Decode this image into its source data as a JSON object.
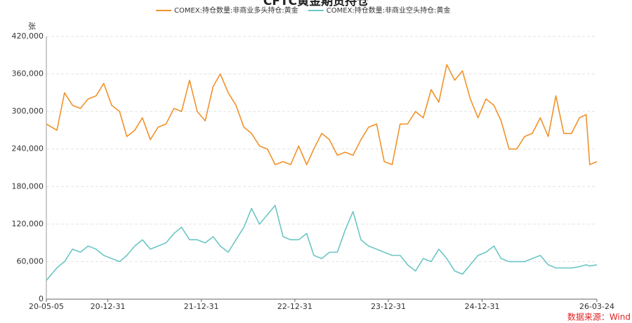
{
  "chart_data": {
    "type": "line",
    "title": "CFTC黄金期货持仓",
    "y_unit": "张",
    "source": "数据来源：Wind",
    "x": [
      "20-05-05",
      "20-06-15",
      "20-07-15",
      "20-08-15",
      "20-09-15",
      "20-10-15",
      "20-11-15",
      "20-12-15",
      "21-01-15",
      "21-02-15",
      "21-03-15",
      "21-04-15",
      "21-05-15",
      "21-06-15",
      "21-07-15",
      "21-08-15",
      "21-09-15",
      "21-10-15",
      "21-11-15",
      "21-12-15",
      "22-01-15",
      "22-02-15",
      "22-03-15",
      "22-04-15",
      "22-05-15",
      "22-06-15",
      "22-07-15",
      "22-08-15",
      "22-09-15",
      "22-10-15",
      "22-11-15",
      "22-12-15",
      "23-01-15",
      "23-02-15",
      "23-03-15",
      "23-04-15",
      "23-05-15",
      "23-06-15",
      "23-07-15",
      "23-08-15",
      "23-09-15",
      "23-10-15",
      "23-11-15",
      "23-12-15",
      "24-01-15",
      "24-02-15",
      "24-03-15",
      "24-04-15",
      "24-05-15",
      "24-06-15",
      "24-07-15",
      "24-08-15",
      "24-09-15",
      "24-10-15",
      "24-11-15",
      "24-12-15",
      "25-01-15",
      "25-02-15",
      "25-03-15",
      "25-04-15",
      "25-05-15",
      "25-06-15",
      "25-07-15",
      "25-08-15",
      "25-09-15",
      "25-10-15",
      "25-11-15",
      "25-12-15",
      "26-01-15",
      "26-02-10",
      "26-02-24",
      "26-03-24"
    ],
    "series": [
      {
        "name": "COMEX:持仓数量:非商业多头持仓:黄金",
        "color": "#f0922a",
        "values": [
          280000,
          270000,
          330000,
          310000,
          305000,
          320000,
          325000,
          345000,
          310000,
          300000,
          260000,
          270000,
          290000,
          255000,
          275000,
          280000,
          305000,
          300000,
          350000,
          300000,
          285000,
          340000,
          360000,
          330000,
          310000,
          275000,
          265000,
          245000,
          240000,
          215000,
          220000,
          215000,
          245000,
          215000,
          240000,
          265000,
          255000,
          230000,
          235000,
          230000,
          255000,
          275000,
          280000,
          220000,
          215000,
          280000,
          280000,
          300000,
          290000,
          335000,
          315000,
          375000,
          350000,
          365000,
          320000,
          290000,
          320000,
          310000,
          285000,
          240000,
          240000,
          260000,
          265000,
          290000,
          260000,
          325000,
          265000,
          265000,
          290000,
          295000,
          215000,
          220000
        ]
      },
      {
        "name": "COMEX:持仓数量:非商业空头持仓:黄金",
        "color": "#6cc6c6",
        "values": [
          30000,
          50000,
          60000,
          80000,
          75000,
          85000,
          80000,
          70000,
          65000,
          60000,
          70000,
          85000,
          95000,
          80000,
          85000,
          90000,
          105000,
          115000,
          95000,
          95000,
          90000,
          100000,
          85000,
          75000,
          95000,
          115000,
          145000,
          120000,
          135000,
          150000,
          100000,
          95000,
          95000,
          105000,
          70000,
          65000,
          75000,
          75000,
          110000,
          140000,
          95000,
          85000,
          80000,
          75000,
          70000,
          70000,
          55000,
          45000,
          65000,
          60000,
          80000,
          65000,
          45000,
          40000,
          55000,
          70000,
          75000,
          85000,
          65000,
          60000,
          60000,
          60000,
          65000,
          70000,
          55000,
          50000,
          50000,
          50000,
          52000,
          55000,
          53000,
          55000
        ]
      }
    ],
    "xlim": [
      "20-05-05",
      "26-03-24"
    ],
    "xticks": [
      "20-05-05",
      "20-12-31",
      "21-12-31",
      "22-12-31",
      "23-12-31",
      "24-12-31",
      "26-03-24"
    ],
    "ylim": [
      0,
      420000
    ],
    "yticks": [
      0,
      {
        "value": 60000,
        "label": "60,000"
      },
      {
        "value": 120000,
        "label": "120,000"
      },
      {
        "value": 180000,
        "label": "180,000"
      },
      {
        "value": 240000,
        "label": "240,000"
      },
      {
        "value": 300000,
        "label": "300,000"
      },
      {
        "value": 360000,
        "label": "360,000"
      },
      {
        "value": 420000,
        "label": "420,000"
      }
    ],
    "grid": true,
    "legend": "top"
  }
}
